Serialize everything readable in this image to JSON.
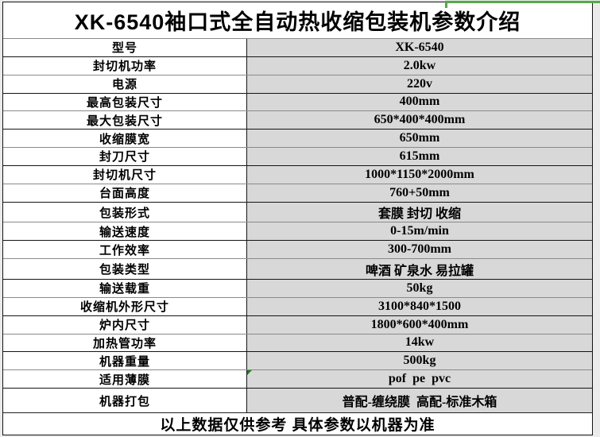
{
  "title": "XK-6540袖口式全自动热收缩包装机参数介绍",
  "footer": "以上数据仅供参考 具体参数以机器为准",
  "colors": {
    "value_cell_bg": "#d8d8d8",
    "label_cell_bg": "#ffffff",
    "border": "#151515",
    "page_bg": "#ebebeb",
    "selection_green": "#55a94a",
    "error_triangle_green": "#1e7e1e"
  },
  "icons": {
    "error_check_triangle": "excel-cell-error-indicator",
    "selection_border_fragment": "green-selection-border"
  },
  "rows": [
    {
      "label": "型号",
      "value": "XK-6540"
    },
    {
      "label": "封切机功率",
      "value": "2.0kw"
    },
    {
      "label": "电源",
      "value": "220v"
    },
    {
      "label": "最高包装尺寸",
      "value": "400mm"
    },
    {
      "label": "最大包装尺寸",
      "value": "650*400*400mm"
    },
    {
      "label": "收缩膜宽",
      "value": "650mm"
    },
    {
      "label": "封刀尺寸",
      "value": "615mm"
    },
    {
      "label": "封切机尺寸",
      "value": "1000*1150*2000mm"
    },
    {
      "label": "台面高度",
      "value": "760+50mm"
    },
    {
      "label": "包装形式",
      "value": "套膜 封切 收缩"
    },
    {
      "label": "输送速度",
      "value": "0-15m/min"
    },
    {
      "label": "工作效率",
      "value": "300-700mm"
    },
    {
      "label": "包装类型",
      "value": "啤酒 矿泉水 易拉罐"
    },
    {
      "label": "输送载重",
      "value": "50kg"
    },
    {
      "label": "收缩机外形尺寸",
      "value": "3100*840*1500"
    },
    {
      "label": "炉内尺寸",
      "value": "1800*600*400mm"
    },
    {
      "label": "加热管功率",
      "value": "14kw"
    },
    {
      "label": "机器重量",
      "value": "500kg"
    },
    {
      "label": "适用薄膜",
      "value": "pof  pe  pvc"
    },
    {
      "label": "机器打包",
      "value": "普配-缠绕膜  高配-标准木箱"
    }
  ]
}
